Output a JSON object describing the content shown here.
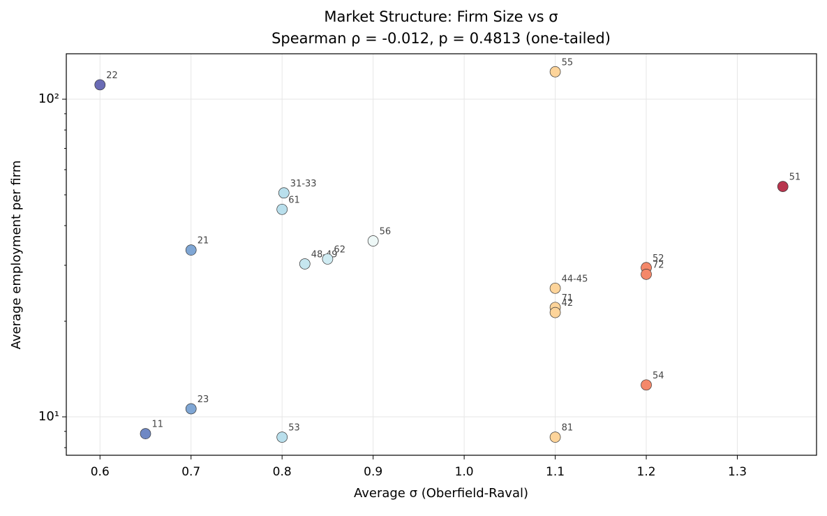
{
  "chart_data": {
    "type": "scatter",
    "title": "Market Structure: Firm Size vs σ",
    "subtitle": "Spearman ρ = -0.012, p = 0.4813 (one-tailed)",
    "xlabel": "Average σ (Oberfield-Raval)",
    "ylabel": "Average employment per firm",
    "labels": [
      "22",
      "55",
      "51",
      "31-33",
      "61",
      "56",
      "21",
      "48-49",
      "62",
      "52",
      "72",
      "44-45",
      "71",
      "42",
      "54",
      "23",
      "11",
      "53",
      "81"
    ],
    "x": [
      0.6,
      1.1,
      1.35,
      0.802,
      0.8,
      0.9,
      0.7,
      0.825,
      0.85,
      1.2,
      1.2,
      1.1,
      1.1,
      1.1,
      1.2,
      0.7,
      0.65,
      0.8,
      1.1
    ],
    "y": [
      111,
      122,
      53.1,
      50.7,
      45.0,
      35.8,
      33.5,
      30.3,
      31.4,
      29.5,
      28.1,
      25.4,
      22.1,
      21.3,
      12.6,
      10.6,
      8.85,
      8.63,
      8.63
    ],
    "colors": [
      "#6a6bb5",
      "#fdd49a",
      "#b8354e",
      "#b9dfec",
      "#b9dfec",
      "#eef8f7",
      "#7fa6d4",
      "#c6e6ef",
      "#d0ecf3",
      "#f4886a",
      "#f4886a",
      "#fdd49a",
      "#fdd49a",
      "#fdd49a",
      "#f4886a",
      "#7fa6d4",
      "#6f88c4",
      "#b9dfec",
      "#fdd49a"
    ],
    "xlim": [
      0.563,
      1.387
    ],
    "ylim": [
      7.57,
      139
    ],
    "xticks": [
      0.6,
      0.7,
      0.8,
      0.9,
      {
        "value": 1,
        "label": "1.0"
      },
      1.1,
      1.2,
      1.3
    ],
    "yticks": [
      {
        "value": 10,
        "label": "10¹"
      },
      {
        "value": 100,
        "label": "10²"
      }
    ],
    "yminorticks": [
      8,
      9,
      20,
      30,
      40,
      50,
      60,
      70,
      80,
      90
    ],
    "ylog": true,
    "grid": true
  }
}
